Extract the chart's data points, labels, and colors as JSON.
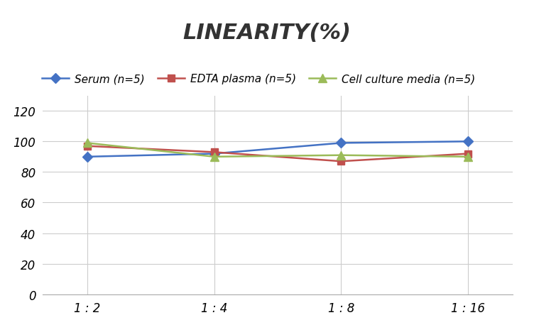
{
  "title": "LINEARITY(%)",
  "x_labels": [
    "1 : 2",
    "1 : 4",
    "1 : 8",
    "1 : 16"
  ],
  "x_positions": [
    0,
    1,
    2,
    3
  ],
  "series": [
    {
      "label": "Serum (n=5)",
      "values": [
        90,
        92,
        99,
        100
      ],
      "color": "#4472C4",
      "marker": "D",
      "markersize": 7,
      "linewidth": 1.8
    },
    {
      "label": "EDTA plasma (n=5)",
      "values": [
        97,
        93,
        87,
        92
      ],
      "color": "#C0504D",
      "marker": "s",
      "markersize": 7,
      "linewidth": 1.8
    },
    {
      "label": "Cell culture media (n=5)",
      "values": [
        99,
        90,
        91,
        90
      ],
      "color": "#9BBB59",
      "marker": "^",
      "markersize": 8,
      "linewidth": 1.8
    }
  ],
  "ylim": [
    0,
    130
  ],
  "yticks": [
    0,
    20,
    40,
    60,
    80,
    100,
    120
  ],
  "grid_color": "#CCCCCC",
  "background_color": "#FFFFFF",
  "title_fontsize": 22,
  "legend_fontsize": 11,
  "tick_fontsize": 12
}
